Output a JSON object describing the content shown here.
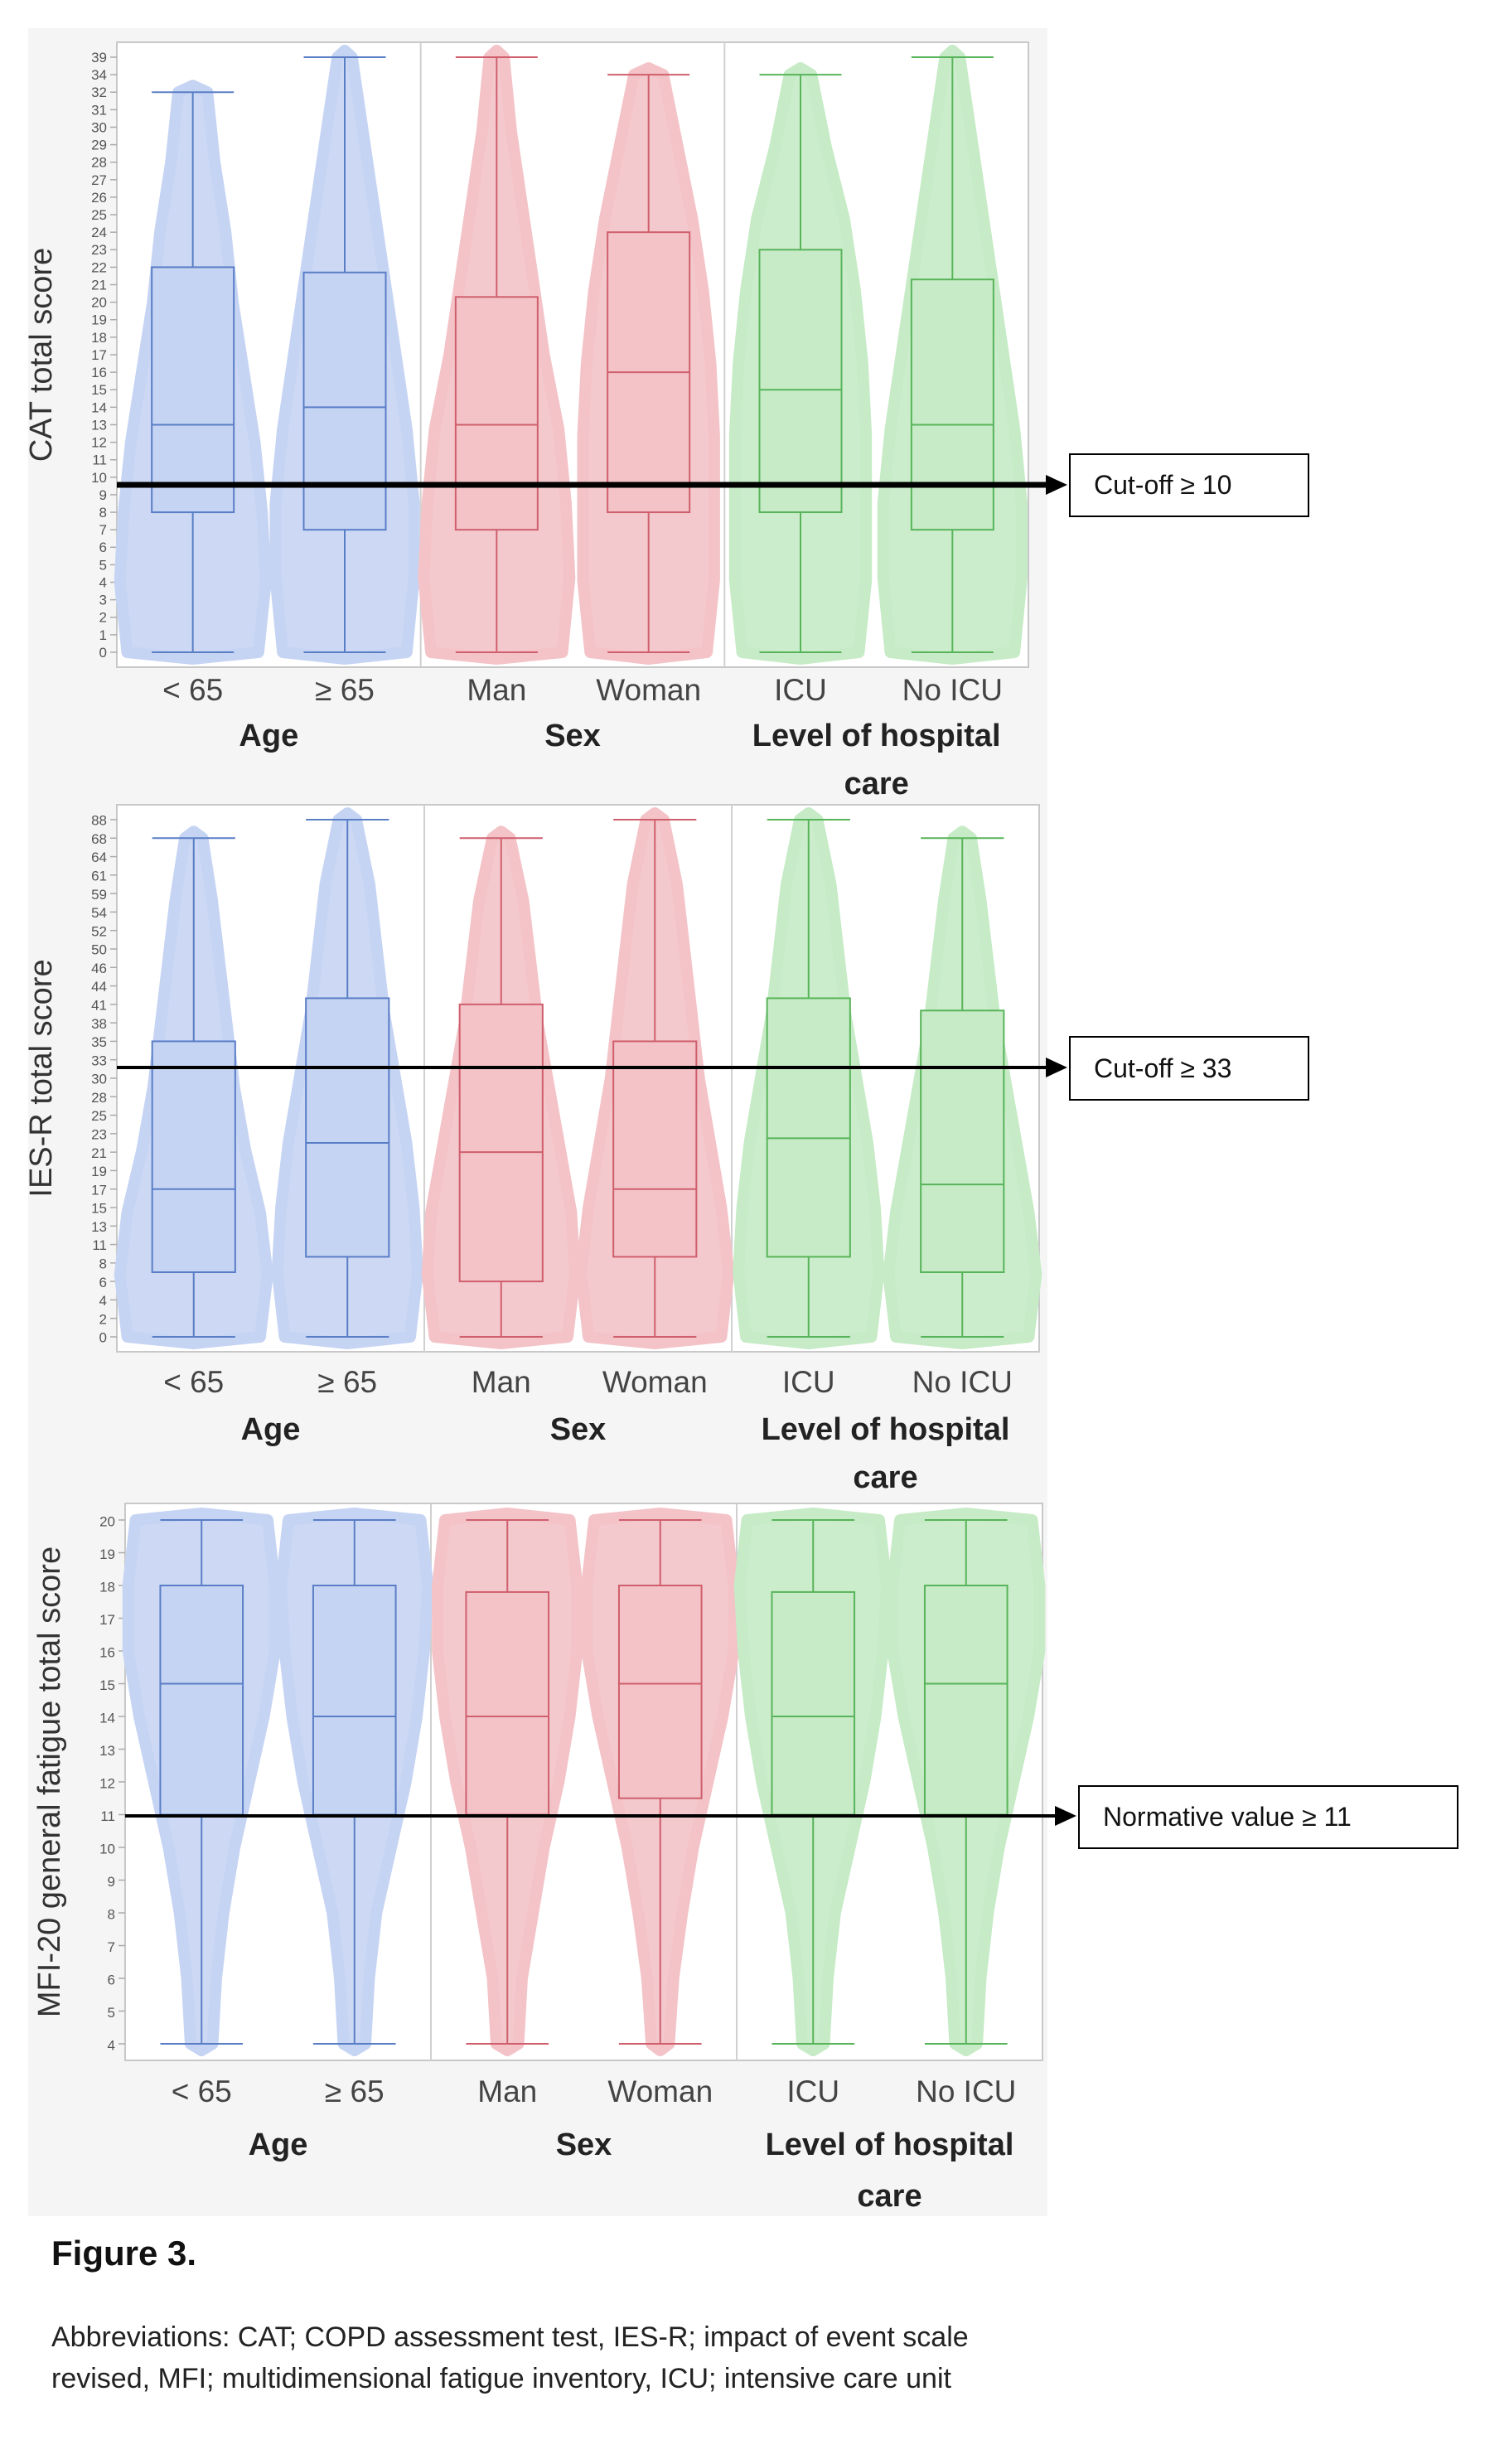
{
  "figure_title": "Figure 3.",
  "abbreviations": "Abbreviations: CAT; COPD assessment test, IES-R; impact of event scale revised, MFI; multidimensional fatigue inventory, ICU; intensive care unit",
  "colors": {
    "age_fill": "#c6d4f3",
    "age_line": "#5a7ec6",
    "sex_fill": "#f3c3c8",
    "sex_line": "#cf5f6d",
    "care_fill": "#c6ebc6",
    "care_line": "#58b45a"
  },
  "chart_data": [
    {
      "type": "violin-box",
      "ylabel": "CAT total score",
      "yticks": [
        0,
        1,
        2,
        3,
        4,
        5,
        6,
        7,
        8,
        9,
        10,
        11,
        12,
        13,
        14,
        15,
        16,
        17,
        18,
        19,
        20,
        21,
        22,
        23,
        24,
        25,
        26,
        27,
        28,
        29,
        30,
        31,
        32,
        34,
        39
      ],
      "categories": [
        "< 65",
        "≥ 65",
        "Man",
        "Woman",
        "ICU",
        "No ICU"
      ],
      "groups": [
        "Age",
        "Sex",
        "Level of hospital care"
      ],
      "cutoff": {
        "value": 10,
        "label": "Cut-off ≥ 10"
      },
      "boxes": [
        {
          "min": 0,
          "q1": 8,
          "median": 13,
          "q3": 22,
          "max": 32,
          "density": [
            0.9,
            1,
            0.95,
            0.85,
            0.7,
            0.55,
            0.45,
            0.3,
            0.2
          ]
        },
        {
          "min": 0,
          "q1": 7,
          "median": 14,
          "q3": 21.7,
          "max": 39,
          "density": [
            0.85,
            0.95,
            0.95,
            0.85,
            0.7,
            0.55,
            0.4,
            0.25,
            0.1
          ]
        },
        {
          "min": 0,
          "q1": 7,
          "median": 13,
          "q3": 20.3,
          "max": 39,
          "density": [
            0.9,
            1,
            0.95,
            0.85,
            0.65,
            0.5,
            0.35,
            0.2,
            0.1
          ]
        },
        {
          "min": 0,
          "q1": 8,
          "median": 16,
          "q3": 24,
          "max": 34,
          "density": [
            0.8,
            0.9,
            0.9,
            0.9,
            0.85,
            0.75,
            0.6,
            0.4,
            0.2
          ]
        },
        {
          "min": 0,
          "q1": 8,
          "median": 15,
          "q3": 23,
          "max": 34,
          "density": [
            0.8,
            0.9,
            0.9,
            0.9,
            0.85,
            0.75,
            0.6,
            0.35,
            0.15
          ]
        },
        {
          "min": 0,
          "q1": 7,
          "median": 13,
          "q3": 21.3,
          "max": 39,
          "density": [
            0.85,
            0.95,
            0.95,
            0.85,
            0.7,
            0.55,
            0.4,
            0.25,
            0.1
          ]
        }
      ]
    },
    {
      "type": "violin-box",
      "ylabel": "IES-R total score",
      "yticks": [
        0,
        2,
        4,
        6,
        8,
        11,
        13,
        15,
        17,
        19,
        21,
        23,
        25,
        28,
        30,
        33,
        35,
        38,
        41,
        44,
        46,
        50,
        52,
        54,
        59,
        61,
        64,
        68,
        88
      ],
      "categories": [
        "< 65",
        "≥ 65",
        "Man",
        "Woman",
        "ICU",
        "No ICU"
      ],
      "groups": [
        "Age",
        "Sex",
        "Level of hospital care"
      ],
      "cutoff": {
        "value": 33,
        "label": "Cut-off ≥ 33"
      },
      "boxes": [
        {
          "min": 0,
          "q1": 7,
          "median": 17,
          "q3": 35,
          "max": 68,
          "density": [
            0.9,
            1,
            0.9,
            0.7,
            0.55,
            0.45,
            0.35,
            0.25,
            0.12
          ]
        },
        {
          "min": 0,
          "q1": 9,
          "median": 22,
          "q3": 42,
          "max": 88,
          "density": [
            0.85,
            0.95,
            0.9,
            0.8,
            0.65,
            0.5,
            0.4,
            0.3,
            0.12
          ]
        },
        {
          "min": 0,
          "q1": 6,
          "median": 21,
          "q3": 41,
          "max": 68,
          "density": [
            0.9,
            1,
            0.95,
            0.8,
            0.65,
            0.5,
            0.4,
            0.3,
            0.12
          ]
        },
        {
          "min": 0,
          "q1": 9,
          "median": 17,
          "q3": 35,
          "max": 88,
          "density": [
            0.9,
            1,
            0.9,
            0.75,
            0.6,
            0.5,
            0.4,
            0.3,
            0.12
          ]
        },
        {
          "min": 0,
          "q1": 9,
          "median": 22.5,
          "q3": 42,
          "max": 88,
          "density": [
            0.85,
            0.95,
            0.9,
            0.8,
            0.65,
            0.5,
            0.4,
            0.3,
            0.12
          ]
        },
        {
          "min": 0,
          "q1": 7,
          "median": 17.5,
          "q3": 40,
          "max": 68,
          "density": [
            0.9,
            1,
            0.9,
            0.75,
            0.6,
            0.45,
            0.35,
            0.25,
            0.12
          ]
        }
      ]
    },
    {
      "type": "violin-box",
      "ylabel": "MFI-20 general fatigue total score",
      "yticks": [
        4,
        5,
        6,
        7,
        8,
        9,
        10,
        11,
        12,
        13,
        14,
        15,
        16,
        17,
        18,
        19,
        20
      ],
      "categories": [
        "< 65",
        "≥ 65",
        "Man",
        "Woman",
        "ICU",
        "No ICU"
      ],
      "groups": [
        "Age",
        "Sex",
        "Level of hospital care"
      ],
      "cutoff": {
        "value": 11,
        "label": "Normative value ≥ 11"
      },
      "boxes": [
        {
          "min": 4,
          "q1": 11,
          "median": 15,
          "q3": 18,
          "max": 20,
          "density": [
            0.15,
            0.2,
            0.3,
            0.45,
            0.65,
            0.85,
            1,
            1,
            0.9
          ]
        },
        {
          "min": 4,
          "q1": 11,
          "median": 14,
          "q3": 18,
          "max": 20,
          "density": [
            0.15,
            0.2,
            0.3,
            0.5,
            0.7,
            0.85,
            0.95,
            1,
            0.9
          ]
        },
        {
          "min": 4,
          "q1": 11,
          "median": 14,
          "q3": 17.8,
          "max": 20,
          "density": [
            0.15,
            0.2,
            0.35,
            0.5,
            0.7,
            0.85,
            0.95,
            0.95,
            0.85
          ]
        },
        {
          "min": 4,
          "q1": 11.5,
          "median": 15,
          "q3": 18,
          "max": 20,
          "density": [
            0.12,
            0.18,
            0.3,
            0.45,
            0.65,
            0.85,
            1,
            1,
            0.9
          ]
        },
        {
          "min": 4,
          "q1": 11,
          "median": 14,
          "q3": 17.8,
          "max": 20,
          "density": [
            0.15,
            0.2,
            0.3,
            0.5,
            0.7,
            0.85,
            0.95,
            1,
            0.9
          ]
        },
        {
          "min": 4,
          "q1": 11,
          "median": 15,
          "q3": 18,
          "max": 20,
          "density": [
            0.15,
            0.2,
            0.3,
            0.45,
            0.65,
            0.85,
            1,
            1,
            0.9
          ]
        }
      ]
    }
  ]
}
